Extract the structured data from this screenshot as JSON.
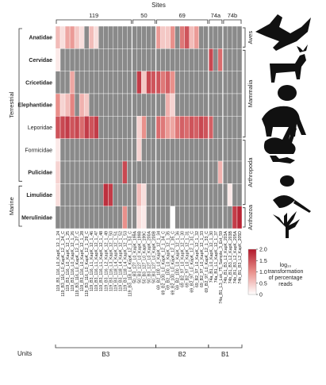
{
  "chart_data": {
    "type": "heatmap",
    "title": "Sites",
    "sites": [
      "119",
      "50",
      "69",
      "74a",
      "74b"
    ],
    "units_label": "Units",
    "units": [
      "B3",
      "B2",
      "B1"
    ],
    "realms": [
      "Terrestrial",
      "Marine"
    ],
    "classes": [
      "Aves",
      "Mammalia",
      "Arthropoda",
      "Anthozoa"
    ],
    "rows": [
      "Anatidae",
      "Cervidae",
      "Cricetidae",
      "Elephantidae",
      "Leporidae",
      "Formicidae",
      "Pulicidae",
      "Limulidae",
      "Merulinidae"
    ],
    "columns": [
      "119_B3_116_L0_KapK_12_1_24",
      "119_B3_116_L0_KapK_12_1_24_C",
      "119_B3_116_L0_KapK_12_1_25",
      "119_B3_116_L0_KapK_12_1_26",
      "119_B3_116_L0_KapK_12_1_27_C",
      "119_B3_116_L0_KapK_12_1_28",
      "119_B3_116_L0_KapK_12_1_29_C",
      "119_B3_116_L1_KapK_12_1_46",
      "119_B3_116_L1_KapK_12_1_47",
      "119_B3_116_L1_KapK_12_1_48",
      "119_B3_116_L2_KapK_12_1_49",
      "119_B3_116_L3_KapK_12_1_50",
      "119_B3_118_L4_KapK_12_1_51",
      "119_B3_118_L4_KapK_12_1_52",
      "119_B3_118_L4_KapK_12_1_53",
      "119_B3_118_L4_KapK_12_1_53_C",
      "50_B3_127_L0_KapK_199A",
      "50_B3_127_L0_KapK_199B",
      "50_B3_127_L0_KapK_199C",
      "50_B3_127_L0_KapK_200A",
      "50_B3_127_L0_KapK_200B",
      "69_B2_100_L0_KapK_12_1_34",
      "69_B2_100_L0_KapK_12_1_34_C",
      "69_B2_100_L0_KapK_12_1_35",
      "69_B2_100_L0_KapK_12_1_35_C",
      "69_B2_100_L0_KapK_12_1_36",
      "69_B2_97_L0_KapK_12_1_30",
      "69_B2_97_L0_KapK_12_1_31",
      "69_B2_97_L0_KapK_12_1_31_C",
      "69_B2_97_L0_KapK_12_1_32",
      "69_B2_97_L0_KapK_12_1_33",
      "69_B2_97_L0_KapK_12_1_33_C",
      "74a_B1_L0_KapK_12_1_30",
      "74a_B1_L1_KapK_12_1_37",
      "74a_B1_L3_Lok_75_Sample_3_Ext_59",
      "74b_B1_B3_L2_KapK_203A",
      "74b_B1_B3_L2_KapK_203B",
      "74b_B1_B3_L2_KapK_205A",
      "74b_B1_B3_L2_KapK_205D"
    ],
    "values": [
      [
        0.6,
        0.3,
        0.8,
        0.9,
        0.5,
        0.3,
        null,
        0.6,
        0.3,
        null,
        null,
        null,
        null,
        null,
        null,
        null,
        null,
        null,
        null,
        null,
        null,
        0.9,
        0.5,
        0.5,
        1.0,
        null,
        1.2,
        1.5,
        0.6,
        0.9,
        null,
        null,
        null,
        null,
        null,
        null,
        null,
        null,
        null
      ],
      [
        0.2,
        null,
        null,
        null,
        null,
        null,
        null,
        null,
        null,
        null,
        null,
        null,
        null,
        null,
        null,
        null,
        null,
        null,
        null,
        null,
        null,
        null,
        null,
        null,
        null,
        null,
        null,
        null,
        null,
        null,
        null,
        null,
        1.6,
        null,
        1.3,
        null,
        null,
        null,
        null
      ],
      [
        null,
        null,
        null,
        0.8,
        null,
        null,
        null,
        null,
        null,
        null,
        null,
        null,
        null,
        null,
        null,
        null,
        null,
        1.7,
        0.5,
        1.6,
        1.5,
        1.5,
        1.2,
        1.4,
        1.0,
        null,
        null,
        null,
        null,
        null,
        null,
        null,
        null,
        null,
        null,
        null,
        null,
        null,
        null
      ],
      [
        1.0,
        0.4,
        0.6,
        1.1,
        null,
        0.7,
        0.5,
        null,
        null,
        null,
        null,
        null,
        null,
        null,
        null,
        null,
        null,
        null,
        null,
        null,
        null,
        null,
        null,
        0.7,
        0.4,
        null,
        null,
        null,
        null,
        null,
        null,
        null,
        null,
        null,
        null,
        null,
        null,
        null,
        null
      ],
      [
        1.5,
        1.6,
        1.7,
        1.5,
        1.6,
        1.3,
        1.7,
        1.5,
        1.7,
        null,
        null,
        null,
        null,
        null,
        null,
        null,
        null,
        0.4,
        1.0,
        null,
        null,
        1.3,
        1.2,
        0.9,
        0.8,
        1.2,
        1.4,
        1.3,
        1.5,
        1.4,
        1.6,
        1.5,
        1.4,
        null,
        null,
        null,
        null,
        null,
        null
      ],
      [
        0.2,
        null,
        null,
        null,
        null,
        null,
        null,
        null,
        null,
        null,
        null,
        null,
        null,
        null,
        null,
        null,
        null,
        0.4,
        null,
        null,
        null,
        null,
        null,
        null,
        null,
        null,
        null,
        null,
        null,
        null,
        null,
        null,
        null,
        null,
        null,
        null,
        null,
        null,
        null
      ],
      [
        0.4,
        null,
        null,
        null,
        null,
        null,
        null,
        null,
        null,
        null,
        null,
        null,
        null,
        null,
        1.6,
        null,
        null,
        null,
        null,
        null,
        null,
        null,
        null,
        null,
        null,
        null,
        null,
        null,
        null,
        null,
        null,
        null,
        null,
        null,
        0.7,
        null,
        null,
        null,
        null
      ],
      [
        0.3,
        null,
        null,
        null,
        null,
        null,
        null,
        null,
        null,
        null,
        1.8,
        1.7,
        null,
        null,
        null,
        null,
        null,
        0.6,
        0.3,
        null,
        null,
        null,
        null,
        null,
        null,
        null,
        null,
        null,
        null,
        null,
        null,
        null,
        null,
        null,
        null,
        null,
        0.2,
        null,
        null
      ],
      [
        null,
        null,
        null,
        null,
        null,
        null,
        null,
        null,
        null,
        null,
        null,
        null,
        null,
        null,
        1.0,
        null,
        null,
        0.3,
        0.2,
        null,
        null,
        null,
        null,
        null,
        0,
        null,
        null,
        null,
        null,
        null,
        null,
        null,
        null,
        null,
        null,
        null,
        null,
        1.7,
        1.9
      ]
    ],
    "colors": [
      "#ffffff",
      "#e9908b",
      "#b2182b"
    ],
    "missing_color": "#8a8a8a",
    "clim": [
      0,
      2
    ],
    "cticks": [
      0,
      0.5,
      {
        "value": 1,
        "label": "1.0"
      },
      1.5,
      {
        "value": 2,
        "label": "2.0"
      }
    ],
    "colorbar_label": [
      "log₁₀",
      "transformation",
      "of percentage",
      "reads"
    ]
  }
}
